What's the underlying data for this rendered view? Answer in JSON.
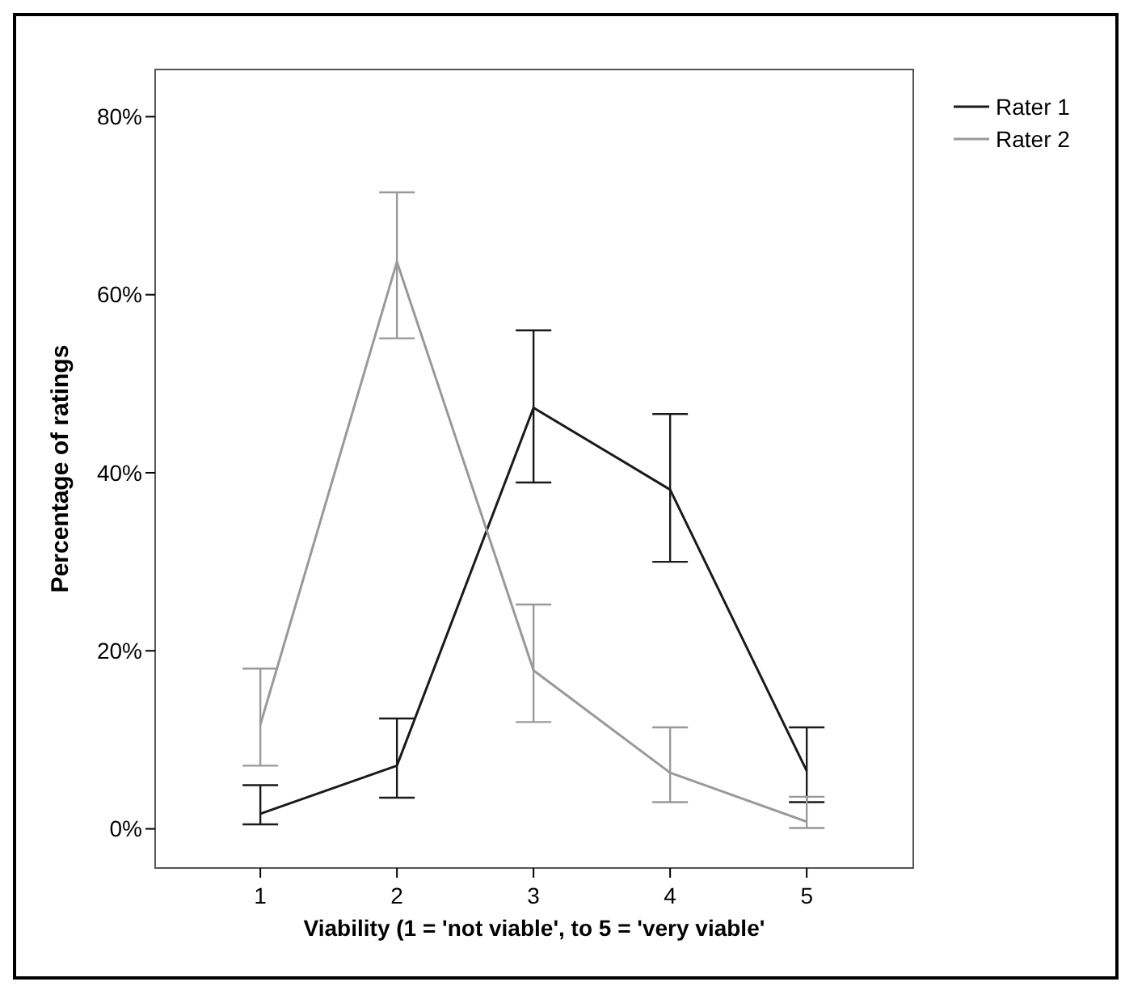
{
  "chart_data": {
    "type": "line",
    "xlabel": "Viability (1 = 'not viable', to 5 = 'very viable'",
    "ylabel": "Percentage of ratings",
    "x": [
      1,
      2,
      3,
      4,
      5
    ],
    "xlim": [
      0.23,
      5.78
    ],
    "xticks": [
      1,
      2,
      3,
      4,
      5
    ],
    "ylim": [
      -4.4,
      85.3
    ],
    "yticks": [
      {
        "value": 0,
        "label": "0%"
      },
      {
        "value": 20,
        "label": "20%"
      },
      {
        "value": 40,
        "label": "40%"
      },
      {
        "value": 60,
        "label": "60%"
      },
      {
        "value": 80,
        "label": "80%"
      }
    ],
    "series": [
      {
        "name": "Rater 1",
        "color": "#1a1a1a",
        "values": [
          1.7,
          7.1,
          47.3,
          38.1,
          6.5
        ],
        "errors": [
          [
            0.5,
            4.9
          ],
          [
            3.5,
            12.4
          ],
          [
            38.9,
            56.0
          ],
          [
            30.0,
            46.6
          ],
          [
            3.0,
            11.4
          ]
        ]
      },
      {
        "name": "Rater 2",
        "color": "#999999",
        "values": [
          11.7,
          63.7,
          17.8,
          6.3,
          0.8
        ],
        "errors": [
          [
            7.1,
            18.0
          ],
          [
            55.1,
            71.5
          ],
          [
            12.0,
            25.2
          ],
          [
            3.0,
            11.4
          ],
          [
            0.1,
            3.6
          ]
        ]
      }
    ],
    "legend": "top right",
    "grid": false,
    "marker": "none",
    "line_style": "solid"
  }
}
